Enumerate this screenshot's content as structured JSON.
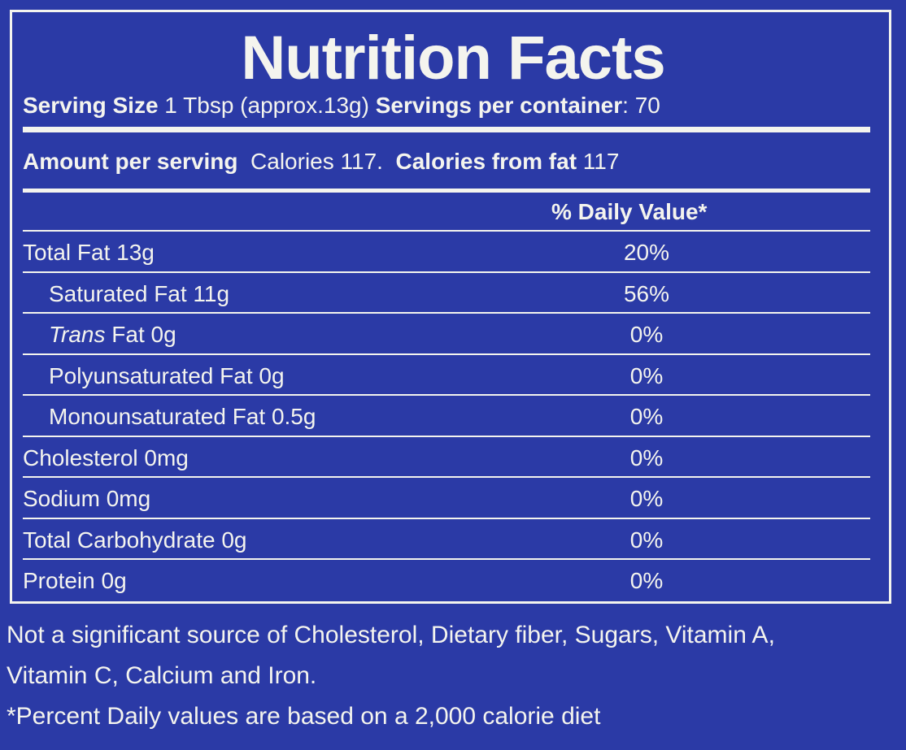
{
  "title": "Nutrition Facts",
  "serving": {
    "size_label": "Serving Size",
    "size_value": "1 Tbsp (approx.13g)",
    "per_container_label": "Servings per container",
    "per_container_value": ": 70"
  },
  "amount": {
    "label": "Amount per serving",
    "calories": "Calories 117.",
    "fat_calories_label": "Calories from fat",
    "fat_calories_value": "117"
  },
  "dv_header": "% Daily Value*",
  "rows": [
    {
      "label": "Total Fat 13g",
      "dv": "20%"
    },
    {
      "label": "Saturated Fat 11g",
      "dv": "56%"
    },
    {
      "label_italic": "Trans",
      "label": " Fat 0g",
      "dv": "0%"
    },
    {
      "label": "Polyunsaturated Fat 0g",
      "dv": "0%"
    },
    {
      "label": "Monounsaturated Fat 0.5g",
      "dv": "0%"
    },
    {
      "label": "Cholesterol 0mg",
      "dv": "0%"
    },
    {
      "label": "Sodium 0mg",
      "dv": "0%"
    },
    {
      "label": "Total Carbohydrate 0g",
      "dv": "0%"
    },
    {
      "label": "Protein 0g",
      "dv": "0%"
    }
  ],
  "footnotes": [
    "Not a significant source of Cholesterol, Dietary fiber, Sugars, Vitamin A,",
    "Vitamin C, Calcium and Iron.",
    "*Percent Daily values are based on a 2,000 calorie diet"
  ],
  "colors": {
    "background": "#2b3aa6",
    "text": "#f4f4ee"
  }
}
